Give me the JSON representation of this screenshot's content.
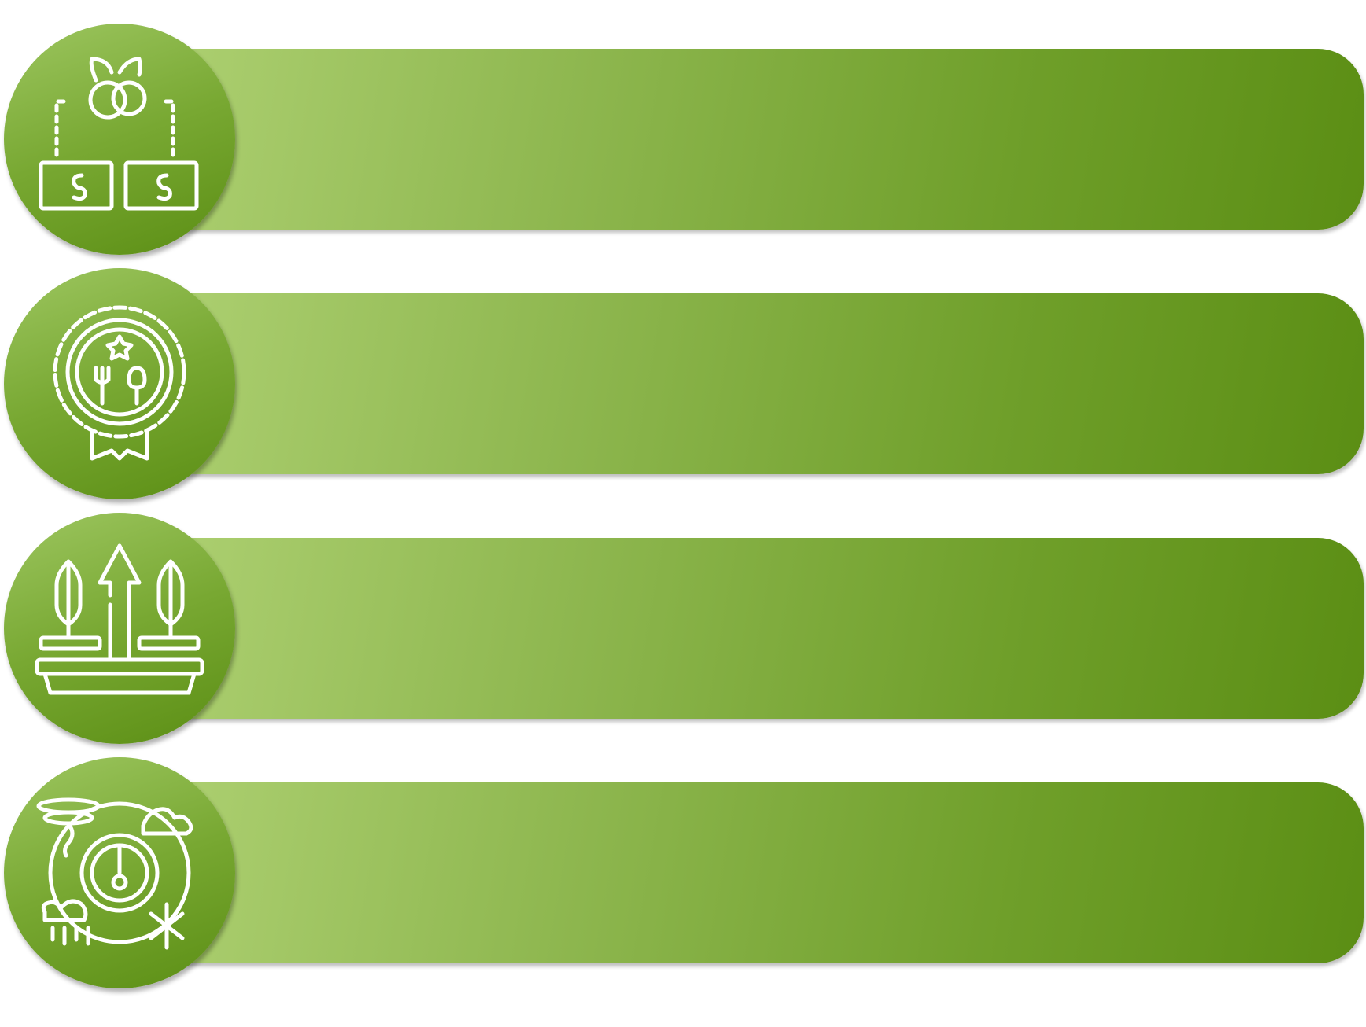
{
  "colors": {
    "bar_light": "#accf70",
    "bar_dark": "#5b8e14",
    "icon": "#ffffff"
  },
  "rows": [
    {
      "icon": "fruit-money-exchange-icon"
    },
    {
      "icon": "food-quality-award-icon"
    },
    {
      "icon": "plant-growth-icon"
    },
    {
      "icon": "weather-climate-icon"
    }
  ]
}
